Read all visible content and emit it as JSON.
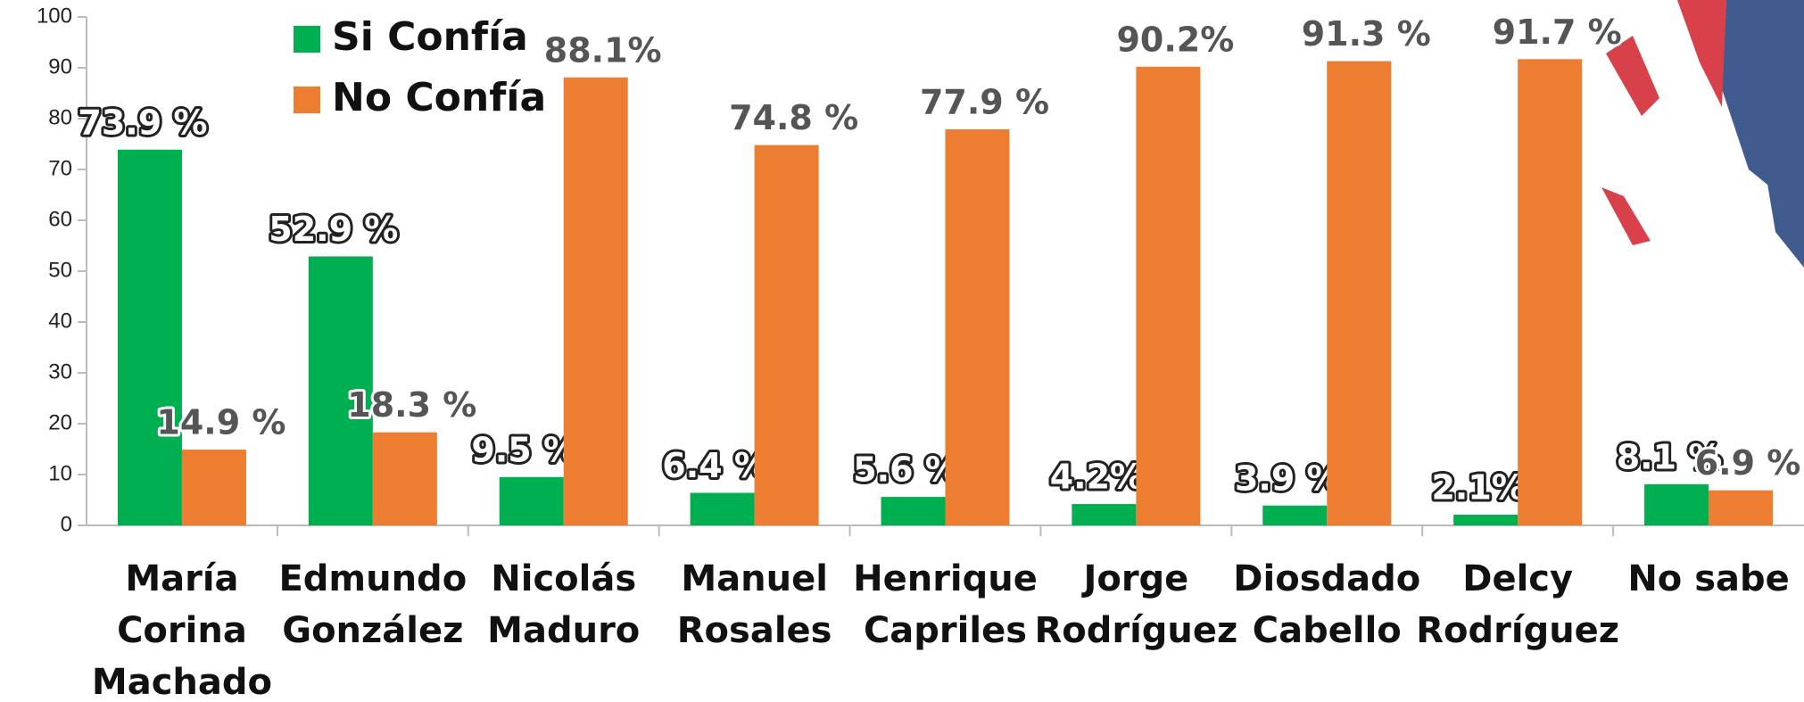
{
  "chart_data": {
    "type": "bar",
    "categories": [
      [
        "María",
        "Corina",
        "Machado"
      ],
      [
        "Edmundo",
        "González"
      ],
      [
        "Nicolás",
        "Maduro"
      ],
      [
        "Manuel",
        "Rosales"
      ],
      [
        "Henrique",
        "Capriles"
      ],
      [
        "Jorge",
        "Rodríguez"
      ],
      [
        "Diosdado",
        "Cabello"
      ],
      [
        "Delcy",
        "Rodríguez"
      ],
      [
        "No sabe"
      ]
    ],
    "series": [
      {
        "name": "Si Confía",
        "color": "#00b050",
        "values": [
          73.9,
          52.9,
          9.5,
          6.4,
          5.6,
          4.2,
          3.9,
          2.1,
          8.1
        ],
        "value_labels": [
          "73.9 %",
          "52.9 %",
          "9.5 %",
          "6.4 %",
          "5.6 %",
          "4.2%",
          "3.9 %",
          "2.1%",
          "8.1 %"
        ]
      },
      {
        "name": "No Confía",
        "color": "#ed7d31",
        "values": [
          14.9,
          18.3,
          88.1,
          74.8,
          77.9,
          90.2,
          91.3,
          91.7,
          6.9
        ],
        "value_labels": [
          "14.9 %",
          "18.3 %",
          "88.1%",
          "74.8 %",
          "77.9 %",
          "90.2%",
          "91.3 %",
          "91.7 %",
          "6.9 %"
        ]
      }
    ],
    "ylim": [
      0,
      100
    ],
    "yticks": [
      0,
      10,
      20,
      30,
      40,
      50,
      60,
      70,
      80,
      90,
      100
    ],
    "grid": false
  }
}
